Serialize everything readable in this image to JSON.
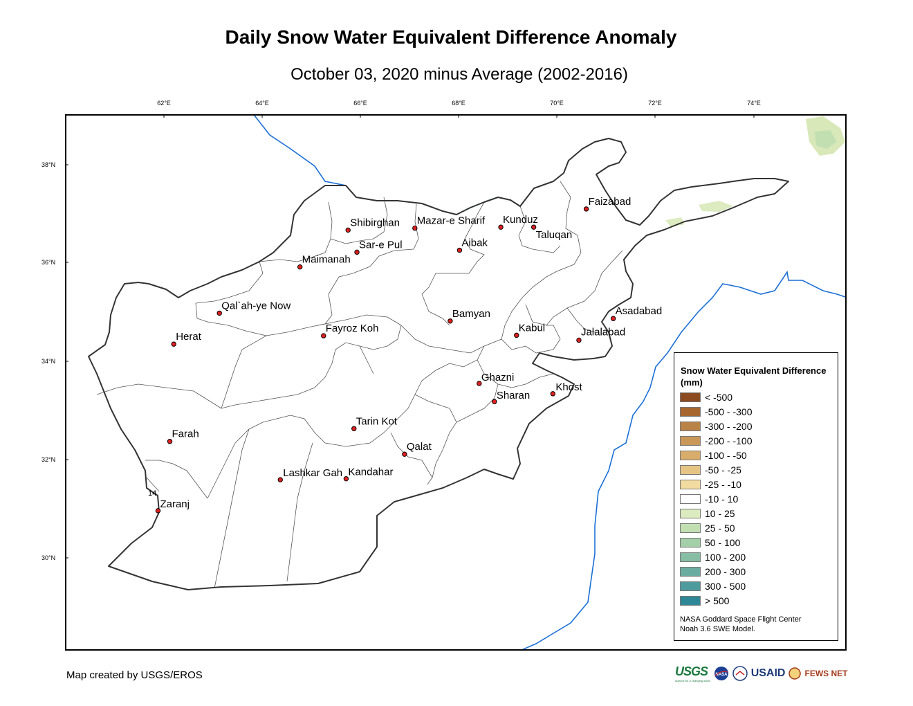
{
  "title": "Daily Snow Water Equivalent Difference Anomaly",
  "subtitle": "October 03, 2020 minus Average (2002-2016)",
  "longitude_labels": [
    "62°E",
    "64°E",
    "66°E",
    "68°E",
    "70°E",
    "72°E",
    "74°E"
  ],
  "latitude_labels": [
    "38°N",
    "36°N",
    "34°N",
    "32°N",
    "30°N"
  ],
  "cities": [
    {
      "name": "Faizabad",
      "lon": 70.6,
      "lat": 37.1
    },
    {
      "name": "Shibirghan",
      "lon": 65.75,
      "lat": 36.67
    },
    {
      "name": "Mazar-e Sharif",
      "lon": 67.11,
      "lat": 36.71
    },
    {
      "name": "Kunduz",
      "lon": 68.86,
      "lat": 36.73
    },
    {
      "name": "Taluqan",
      "lon": 69.53,
      "lat": 36.73
    },
    {
      "name": "Sar-e Pul",
      "lon": 65.93,
      "lat": 36.22
    },
    {
      "name": "Aibak",
      "lon": 68.02,
      "lat": 36.26
    },
    {
      "name": "Maimanah",
      "lon": 64.77,
      "lat": 35.92
    },
    {
      "name": "Qal`ah-ye Now",
      "lon": 63.13,
      "lat": 34.98
    },
    {
      "name": "Bamyan",
      "lon": 67.83,
      "lat": 34.82
    },
    {
      "name": "Asadabad",
      "lon": 71.15,
      "lat": 34.87
    },
    {
      "name": "Kabul",
      "lon": 69.18,
      "lat": 34.53
    },
    {
      "name": "Jalalabad",
      "lon": 70.45,
      "lat": 34.43
    },
    {
      "name": "Fayroz Koh",
      "lon": 65.25,
      "lat": 34.52
    },
    {
      "name": "Herat",
      "lon": 62.2,
      "lat": 34.35
    },
    {
      "name": "Ghazni",
      "lon": 68.42,
      "lat": 33.55
    },
    {
      "name": "Khost",
      "lon": 69.92,
      "lat": 33.34
    },
    {
      "name": "Sharan",
      "lon": 68.73,
      "lat": 33.18
    },
    {
      "name": "Farah",
      "lon": 62.12,
      "lat": 32.37
    },
    {
      "name": "Tarin Kot",
      "lon": 65.87,
      "lat": 32.63
    },
    {
      "name": "Qalat",
      "lon": 66.9,
      "lat": 32.11
    },
    {
      "name": "Lashkar Gah",
      "lon": 64.37,
      "lat": 31.59
    },
    {
      "name": "Kandahar",
      "lon": 65.71,
      "lat": 31.61
    },
    {
      "name": "Zaranj",
      "lon": 61.88,
      "lat": 30.96
    }
  ],
  "stray_label": "14",
  "legend": {
    "title": "Snow Water Equivalent Difference (mm)",
    "items": [
      {
        "label": "< -500",
        "color": "#8b4a1f"
      },
      {
        "label": "-500 - -300",
        "color": "#a6672f"
      },
      {
        "label": "-300 - -200",
        "color": "#b98246"
      },
      {
        "label": "-200 - -100",
        "color": "#c99858"
      },
      {
        "label": "-100 - -50",
        "color": "#d8ad6b"
      },
      {
        "label": "-50 - -25",
        "color": "#e5c484"
      },
      {
        "label": "-25 - -10",
        "color": "#f1dba0"
      },
      {
        "label": "-10 - 10",
        "color": "#ffffff"
      },
      {
        "label": "10 - 25",
        "color": "#dcebc0"
      },
      {
        "label": "25 - 50",
        "color": "#c2dfb2"
      },
      {
        "label": "50 - 100",
        "color": "#a4cfa8"
      },
      {
        "label": "100 - 200",
        "color": "#87bda2"
      },
      {
        "label": "200 - 300",
        "color": "#6baca0"
      },
      {
        "label": "300 - 500",
        "color": "#4e9b9e"
      },
      {
        "label": "> 500",
        "color": "#2e8796"
      }
    ],
    "credit_lines": [
      "NASA Goddard Space Flight Center",
      "Noah 3.6 SWE Model."
    ]
  },
  "footer_text": "Map created by USGS/EROS",
  "logos": {
    "usgs": "USGS",
    "usgs_tagline": "science for a changing world",
    "nasa": "NASA",
    "usaid": "USAID",
    "fewsnet": "FEWS NET"
  },
  "colors": {
    "river": "#1a6fd6",
    "border": "#000000",
    "city_dot": "#e02020",
    "anomaly_positive_small": "#dcebc0"
  }
}
